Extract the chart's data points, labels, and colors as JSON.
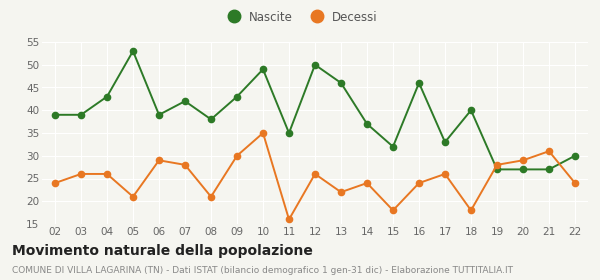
{
  "years": [
    "02",
    "03",
    "04",
    "05",
    "06",
    "07",
    "08",
    "09",
    "10",
    "11",
    "12",
    "13",
    "14",
    "15",
    "16",
    "17",
    "18",
    "19",
    "20",
    "21",
    "22"
  ],
  "nascite": [
    39,
    39,
    43,
    53,
    39,
    42,
    38,
    43,
    49,
    35,
    50,
    46,
    37,
    32,
    46,
    33,
    40,
    27,
    27,
    27,
    30
  ],
  "decessi": [
    24,
    26,
    26,
    21,
    29,
    28,
    21,
    30,
    35,
    16,
    26,
    22,
    24,
    18,
    24,
    26,
    18,
    28,
    29,
    31,
    24
  ],
  "nascite_color": "#2d7a27",
  "decessi_color": "#e87722",
  "background_color": "#f5f5f0",
  "grid_color": "#ffffff",
  "ylim": [
    15,
    55
  ],
  "yticks": [
    15,
    20,
    25,
    30,
    35,
    40,
    45,
    50,
    55
  ],
  "title": "Movimento naturale della popolazione",
  "subtitle": "COMUNE DI VILLA LAGARINA (TN) - Dati ISTAT (bilancio demografico 1 gen-31 dic) - Elaborazione TUTTITALIA.IT",
  "legend_nascite": "Nascite",
  "legend_decessi": "Decessi",
  "title_fontsize": 10,
  "subtitle_fontsize": 6.5,
  "tick_fontsize": 7.5,
  "legend_fontsize": 8.5,
  "marker_size": 4.5,
  "line_width": 1.4
}
